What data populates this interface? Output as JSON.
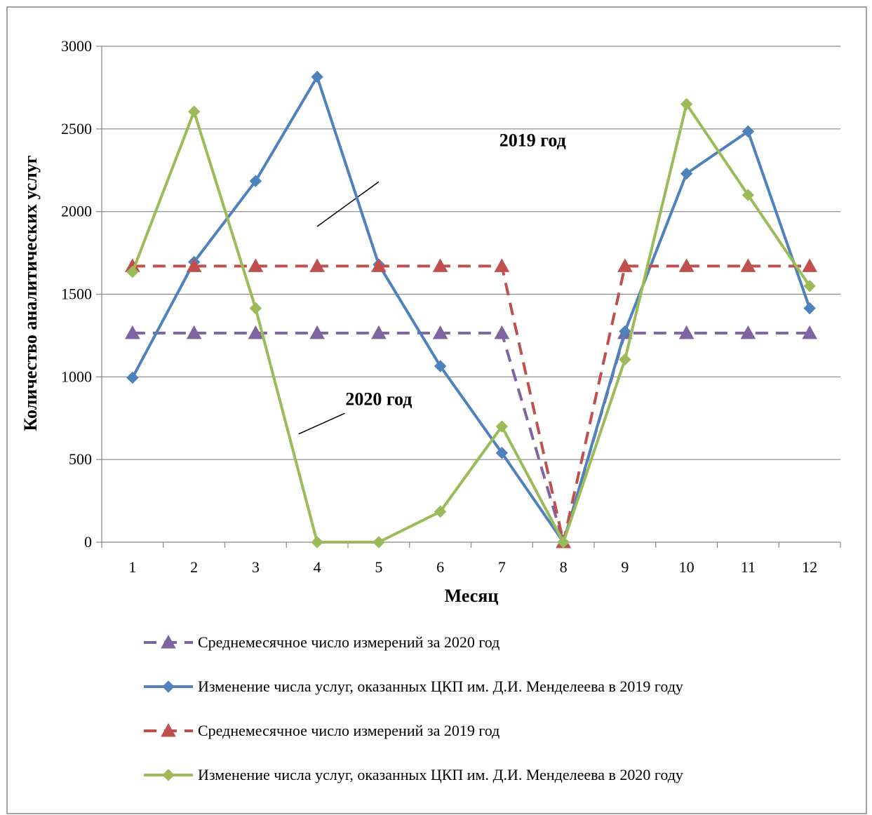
{
  "chart_data": {
    "type": "line",
    "xlabel": "Месяц",
    "ylabel": "Количество аналитических услуг",
    "ylim": [
      0,
      3000
    ],
    "yticks": [
      0,
      500,
      1000,
      1500,
      2000,
      2500,
      3000
    ],
    "categories": [
      "1",
      "2",
      "3",
      "4",
      "5",
      "6",
      "7",
      "8",
      "9",
      "10",
      "11",
      "12"
    ],
    "grid": "horizontal",
    "legend_position": "bottom",
    "series": [
      {
        "name": "Среднемесячное число измерений за 2020 год",
        "color": "#8064A2",
        "dashed": true,
        "marker": "triangle",
        "values": [
          1265,
          1265,
          1265,
          1265,
          1265,
          1265,
          1265,
          0,
          1265,
          1265,
          1265,
          1265
        ]
      },
      {
        "name": "Изменение числа услуг, оказанных ЦКП им. Д.И. Менделеева в 2019 году",
        "color": "#4F81BD",
        "dashed": false,
        "marker": "diamond",
        "values": [
          995,
          1695,
          2185,
          2815,
          1680,
          1065,
          540,
          0,
          1275,
          2230,
          2485,
          1415
        ]
      },
      {
        "name": "Среднемесячное число измерений за 2019 год",
        "color": "#C0504D",
        "dashed": true,
        "marker": "triangle",
        "values": [
          1670,
          1670,
          1670,
          1670,
          1670,
          1670,
          1670,
          0,
          1670,
          1670,
          1670,
          1670
        ]
      },
      {
        "name": "Изменение числа услуг, оказанных ЦКП им. Д.И. Менделеева в 2020 году",
        "color": "#9BBB59",
        "dashed": false,
        "marker": "diamond",
        "values": [
          1635,
          2605,
          1415,
          0,
          0,
          185,
          700,
          0,
          1105,
          2650,
          2100,
          1550
        ]
      }
    ],
    "annotations": [
      {
        "text": "2019 год",
        "x": 7.5,
        "y": 2395,
        "anchor_x": 5.0,
        "anchor_y": 2180,
        "pointer_x": 4.0,
        "pointer_y": 1910
      },
      {
        "text": "2020 год",
        "x": 5.0,
        "y": 830,
        "anchor_x": 4.45,
        "anchor_y": 780,
        "pointer_x": 3.7,
        "pointer_y": 655
      }
    ]
  }
}
